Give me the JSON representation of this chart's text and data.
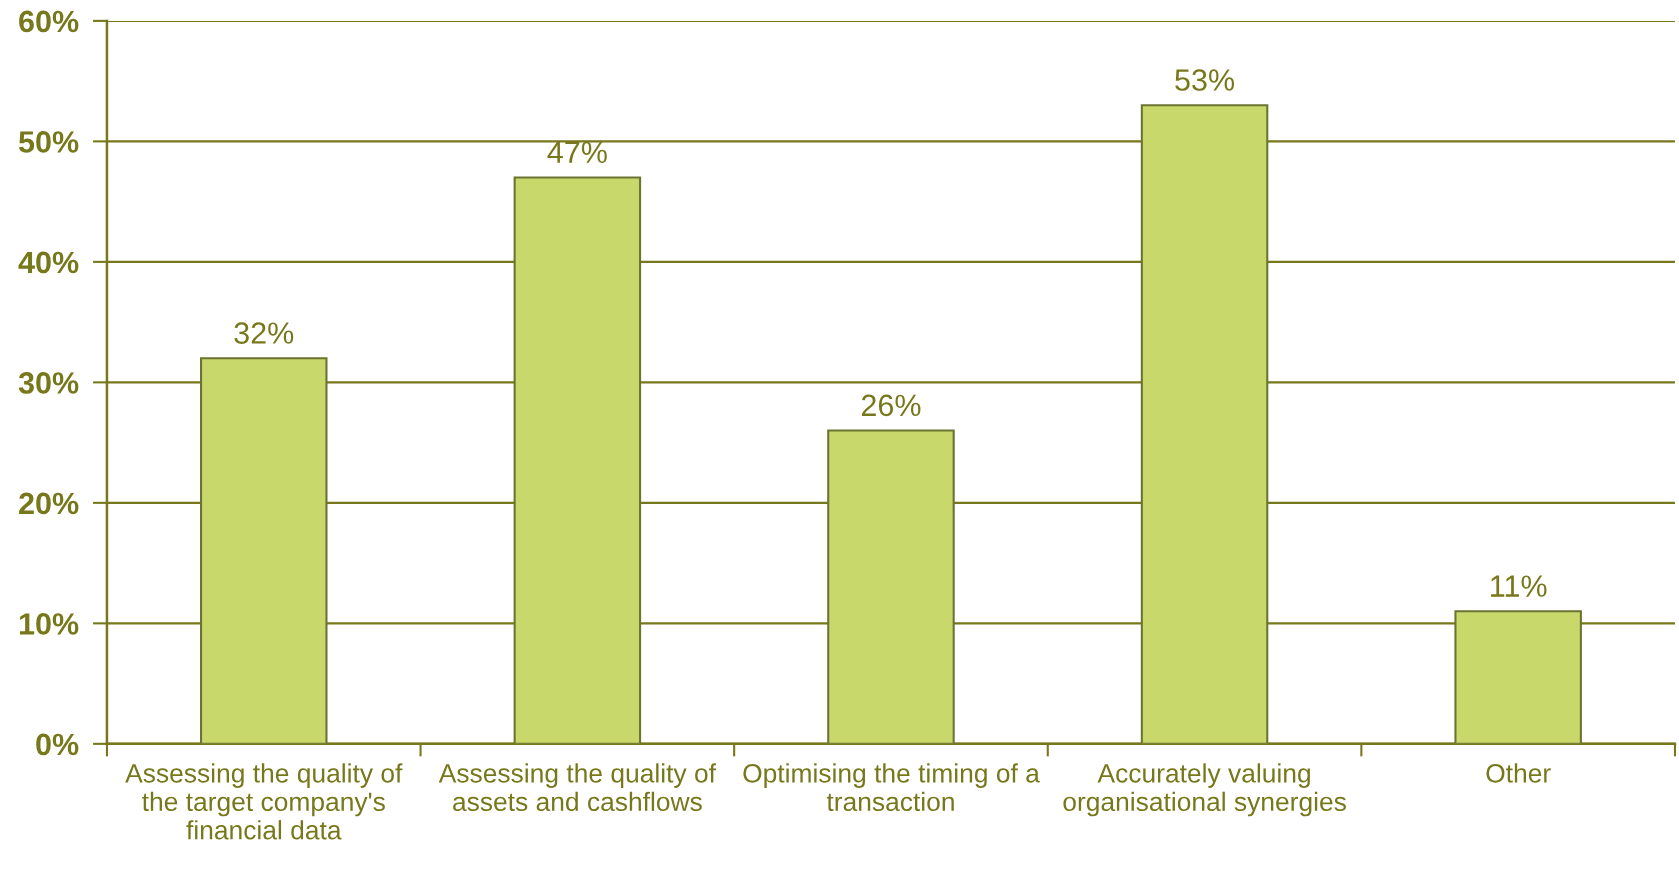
{
  "chart_data": {
    "type": "bar",
    "categories": [
      "Assessing the quality of\nthe target company's\nfinancial data",
      "Assessing the quality of\nassets and cashflows",
      "Optimising the timing of a\ntransaction",
      "Accurately valuing\norganisational synergies",
      "Other"
    ],
    "values": [
      32,
      47,
      26,
      53,
      11
    ],
    "value_labels": [
      "32%",
      "47%",
      "26%",
      "53%",
      "11%"
    ],
    "color": "#c9d86a",
    "ylim": [
      0,
      60
    ],
    "yticks": [
      {
        "value": 0,
        "label": "0%"
      },
      {
        "value": 10,
        "label": "10%"
      },
      {
        "value": 20,
        "label": "20%"
      },
      {
        "value": 30,
        "label": "30%"
      },
      {
        "value": 40,
        "label": "40%"
      },
      {
        "value": 50,
        "label": "50%"
      },
      {
        "value": 60,
        "label": "60%"
      }
    ],
    "grid": "y"
  }
}
